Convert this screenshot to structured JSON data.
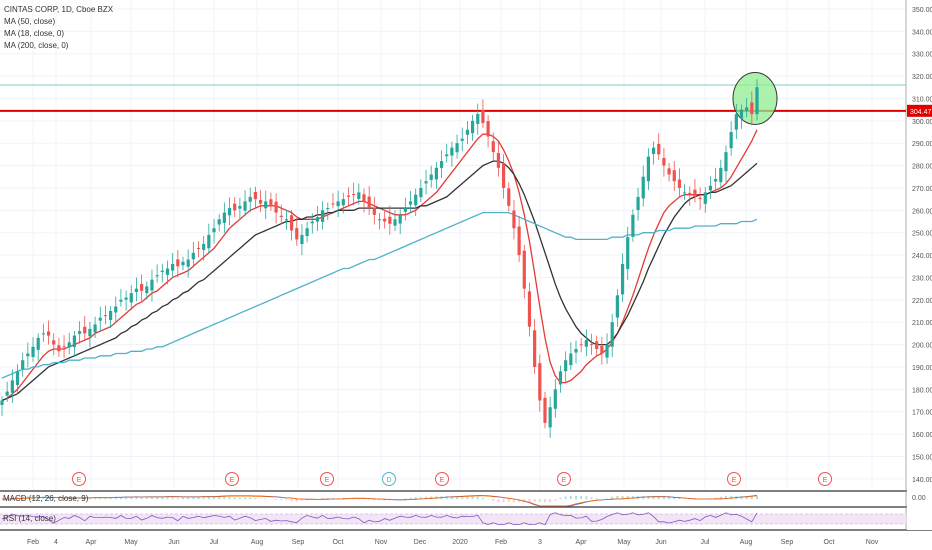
{
  "header": {
    "title": "CINTAS CORP, 1D, Cboe BZX",
    "indicators": [
      "MA (50, close)",
      "MA (18, close, 0)",
      "MA (200, close, 0)"
    ]
  },
  "panels": {
    "macd_label": "MACD (12, 26, close, 9)",
    "macd_zero_label": "0.00",
    "rsi_label": "RSI (14, close)"
  },
  "price_tag": "304.47",
  "colors": {
    "up": "#26a69a",
    "down": "#ef5350",
    "ma18": "#e53935",
    "ma50": "#333333",
    "ma200": "#4fb3c8",
    "resistance": "#e00000",
    "highlight_fill": "#90ee90",
    "rsi": "#7e57c2"
  },
  "events": [
    {
      "label": "E",
      "date": "Mar 24"
    },
    {
      "label": "E",
      "date": "Jul 10"
    },
    {
      "label": "E",
      "date": "Sep 25"
    },
    {
      "label": "D",
      "date": "Nov 13"
    },
    {
      "label": "E",
      "date": "Dec 20"
    },
    {
      "label": "E",
      "date": "Mar 26"
    },
    {
      "label": "E",
      "date": "Jul 14"
    },
    {
      "label": "E",
      "date": "Sep 24"
    }
  ],
  "chart_data": {
    "type": "candlestick",
    "title": "CINTAS CORP, 1D, Cboe BZX",
    "x_ticks": [
      "Feb",
      "4",
      "Apr",
      "May",
      "Jun",
      "Jul",
      "Aug",
      "Sep",
      "Oct",
      "Nov",
      "Dec",
      "2020",
      "Feb",
      "3",
      "Apr",
      "May",
      "Jun",
      "Jul",
      "Aug",
      "Sep",
      "Oct",
      "Nov"
    ],
    "y_ticks": [
      140,
      150,
      160,
      170,
      180,
      190,
      200,
      210,
      220,
      230,
      240,
      250,
      260,
      270,
      280,
      290,
      300,
      310,
      320,
      330,
      340,
      350
    ],
    "ylim": [
      135,
      354
    ],
    "resistance_level": 304.47,
    "horizontal_level": 316,
    "closes": [
      175,
      179,
      184,
      188,
      193,
      196,
      199,
      203,
      205,
      204,
      200,
      197,
      199,
      201,
      204,
      206,
      205,
      207,
      209,
      212,
      213,
      215,
      217,
      220,
      221,
      223,
      225,
      224,
      226,
      229,
      231,
      233,
      234,
      236,
      235,
      237,
      238,
      241,
      243,
      245,
      249,
      252,
      256,
      259,
      261,
      260,
      262,
      264,
      266,
      265,
      263,
      264,
      262,
      259,
      257,
      256,
      251,
      247,
      249,
      252,
      255,
      257,
      260,
      261,
      263,
      264,
      265,
      266,
      267,
      268,
      264,
      261,
      258,
      256,
      255,
      254,
      256,
      258,
      261,
      264,
      267,
      270,
      273,
      276,
      279,
      282,
      285,
      288,
      290,
      292,
      296,
      300,
      303,
      299,
      293,
      286,
      279,
      270,
      262,
      252,
      240,
      225,
      208,
      190,
      175,
      165,
      172,
      180,
      188,
      193,
      196,
      198,
      200,
      202,
      200,
      198,
      196,
      200,
      210,
      222,
      236,
      248,
      258,
      266,
      275,
      284,
      288,
      285,
      280,
      276,
      273,
      270,
      268,
      267,
      266,
      265,
      268,
      271,
      274,
      279,
      286,
      295,
      303,
      305,
      306,
      303,
      315
    ],
    "moving_averages": [
      {
        "name": "MA (18, close, 0)",
        "values": [
          175,
          176,
          178,
          180,
          183,
          186,
          189,
          192,
          195,
          197,
          198,
          198,
          198,
          199,
          200,
          201,
          202,
          203,
          205,
          206,
          207,
          208,
          210,
          212,
          214,
          216,
          218,
          219,
          221,
          223,
          224,
          226,
          228,
          230,
          231,
          232,
          233,
          235,
          237,
          239,
          241,
          243,
          246,
          249,
          252,
          254,
          256,
          258,
          260,
          261,
          262,
          262,
          262,
          262,
          261,
          260,
          259,
          257,
          256,
          256,
          256,
          256,
          257,
          258,
          259,
          260,
          261,
          262,
          263,
          264,
          264,
          263,
          262,
          261,
          260,
          259,
          258,
          258,
          258,
          259,
          260,
          262,
          264,
          266,
          268,
          271,
          274,
          277,
          280,
          283,
          286,
          289,
          292,
          294,
          294,
          293,
          291,
          287,
          282,
          276,
          268,
          258,
          246,
          232,
          217,
          203,
          192,
          186,
          183,
          183,
          184,
          186,
          188,
          191,
          193,
          195,
          196,
          198,
          201,
          205,
          210,
          216,
          222,
          229,
          236,
          243,
          249,
          254,
          259,
          262,
          264,
          266,
          267,
          267,
          267,
          267,
          267,
          268,
          269,
          270,
          272,
          275,
          279,
          283,
          287,
          291,
          296
        ]
      },
      {
        "name": "MA (50, close)",
        "values": [
          175,
          176,
          177,
          178,
          180,
          182,
          184,
          186,
          188,
          190,
          191,
          192,
          193,
          194,
          195,
          196,
          197,
          198,
          199,
          200,
          201,
          202,
          203,
          205,
          206,
          208,
          209,
          211,
          212,
          214,
          215,
          217,
          218,
          220,
          221,
          223,
          224,
          226,
          228,
          229,
          231,
          233,
          235,
          237,
          239,
          241,
          243,
          245,
          247,
          249,
          250,
          251,
          252,
          253,
          254,
          255,
          255,
          256,
          256,
          257,
          257,
          258,
          258,
          259,
          259,
          260,
          260,
          260,
          260,
          261,
          261,
          261,
          261,
          261,
          261,
          261,
          261,
          261,
          261,
          261,
          261,
          262,
          262,
          263,
          264,
          265,
          266,
          268,
          270,
          272,
          274,
          276,
          278,
          280,
          281,
          282,
          282,
          281,
          279,
          276,
          272,
          267,
          261,
          255,
          248,
          241,
          234,
          227,
          221,
          216,
          212,
          208,
          205,
          203,
          201,
          200,
          200,
          200,
          202,
          205,
          209,
          213,
          218,
          223,
          228,
          234,
          239,
          244,
          249,
          253,
          257,
          260,
          263,
          265,
          266,
          267,
          267,
          268,
          268,
          269,
          270,
          271,
          273,
          275,
          277,
          279,
          281
        ]
      },
      {
        "name": "MA (200, close, 0)",
        "values": [
          185,
          186,
          187,
          188,
          189,
          189,
          190,
          190,
          191,
          191,
          192,
          192,
          192,
          193,
          193,
          193,
          194,
          194,
          194,
          195,
          195,
          195,
          196,
          196,
          196,
          197,
          197,
          197,
          198,
          198,
          199,
          199,
          200,
          201,
          202,
          203,
          204,
          205,
          206,
          207,
          208,
          209,
          210,
          211,
          212,
          213,
          214,
          215,
          216,
          217,
          218,
          219,
          220,
          221,
          222,
          223,
          224,
          225,
          226,
          227,
          228,
          229,
          230,
          231,
          232,
          233,
          234,
          234,
          235,
          236,
          237,
          238,
          238,
          239,
          240,
          241,
          242,
          243,
          244,
          245,
          246,
          247,
          248,
          249,
          250,
          251,
          252,
          253,
          254,
          255,
          256,
          257,
          258,
          259,
          259,
          259,
          259,
          259,
          259,
          258,
          257,
          256,
          255,
          254,
          253,
          252,
          251,
          250,
          249,
          248,
          248,
          247,
          247,
          247,
          247,
          247,
          247,
          247,
          248,
          248,
          248,
          249,
          249,
          249,
          250,
          250,
          250,
          251,
          251,
          251,
          252,
          252,
          252,
          252,
          253,
          253,
          253,
          253,
          253,
          254,
          254,
          254,
          254,
          255,
          255,
          255,
          256
        ]
      }
    ]
  }
}
